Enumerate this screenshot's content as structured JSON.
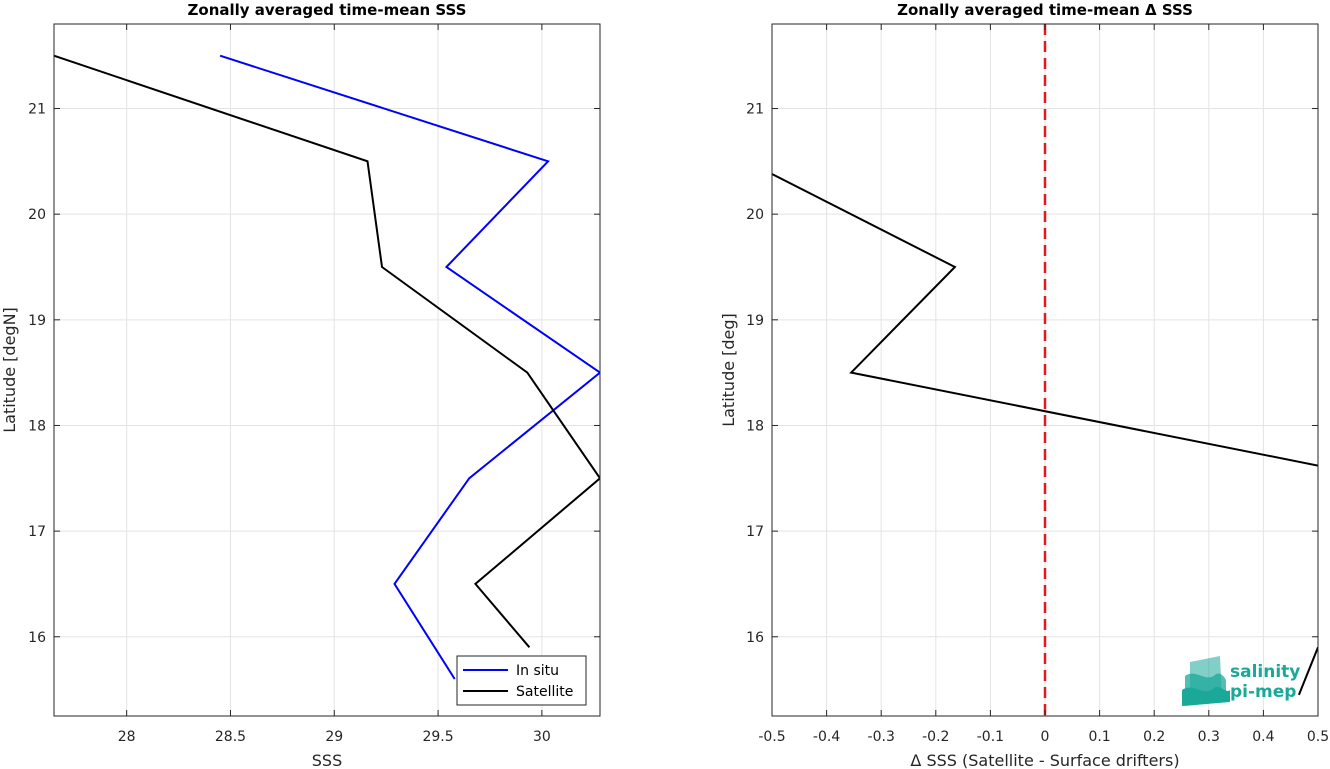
{
  "chart_data": [
    {
      "type": "line",
      "title": "Zonally averaged time-mean SSS",
      "xlabel": "SSS",
      "ylabel": "Latitude [degN]",
      "xlim": [
        27.65,
        30.28
      ],
      "ylim": [
        15.25,
        21.8
      ],
      "xticks": [
        "28",
        "28.5",
        "29",
        "29.5",
        "30"
      ],
      "yticks": [
        "16",
        "17",
        "18",
        "19",
        "20",
        "21"
      ],
      "grid": true,
      "legend": {
        "position": "bottom-right",
        "entries": [
          "In situ",
          "Satellite"
        ]
      },
      "series": [
        {
          "name": "In situ",
          "color": "#0000ff",
          "x": [
            28.45,
            30.03,
            29.54,
            30.28,
            29.65,
            29.29,
            29.58
          ],
          "y": [
            21.5,
            20.5,
            19.5,
            18.5,
            17.5,
            16.5,
            15.6
          ]
        },
        {
          "name": "Satellite",
          "color": "#000000",
          "x": [
            27.65,
            29.16,
            29.23,
            29.93,
            30.28,
            29.68,
            29.94
          ],
          "y": [
            21.5,
            20.5,
            19.5,
            18.5,
            17.5,
            16.5,
            15.9
          ]
        }
      ]
    },
    {
      "type": "line",
      "title": "Zonally averaged time-mean Δ SSS",
      "xlabel": "Δ SSS (Satellite - Surface drifters)",
      "ylabel": "Latitude [deg]",
      "xlim": [
        -0.5,
        0.5
      ],
      "ylim": [
        15.25,
        21.8
      ],
      "xticks": [
        "-0.5",
        "-0.4",
        "-0.3",
        "-0.2",
        "-0.1",
        "0",
        "0.1",
        "0.2",
        "0.3",
        "0.4",
        "0.5"
      ],
      "yticks": [
        "16",
        "17",
        "18",
        "19",
        "20",
        "21"
      ],
      "grid": true,
      "reference_line": {
        "x": 0,
        "color": "#e31a1c",
        "style": "dashed"
      },
      "series": [
        {
          "color": "#000000",
          "x": [
            -0.5,
            -0.165,
            -0.355,
            0.5
          ],
          "y": [
            20.38,
            19.5,
            18.5,
            17.62
          ]
        },
        {
          "color": "#000000",
          "x": [
            0.465,
            0.5
          ],
          "y": [
            15.45,
            15.9
          ]
        }
      ]
    }
  ],
  "logo": {
    "line1": "salinity",
    "line2": "pi-mep",
    "color": "#1aa899"
  }
}
